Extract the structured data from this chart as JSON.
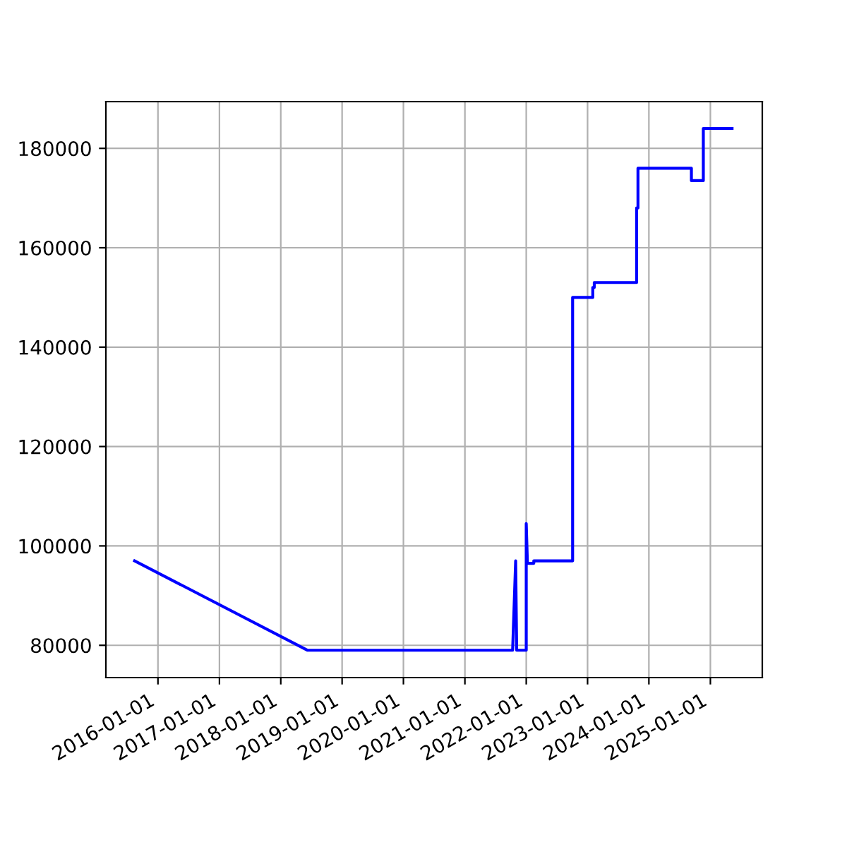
{
  "chart_data": {
    "type": "line",
    "x": [
      "2015-08-15",
      "2018-06-10",
      "2021-10-12",
      "2021-10-30",
      "2021-11-05",
      "2022-01-01",
      "2022-01-01",
      "2022-01-08",
      "2022-02-15",
      "2022-02-15",
      "2022-10-04",
      "2022-10-04",
      "2023-02-01",
      "2023-02-01",
      "2023-02-10",
      "2023-02-10",
      "2023-10-20",
      "2023-10-20",
      "2023-10-28",
      "2023-10-28",
      "2024-09-10",
      "2024-09-10",
      "2024-11-20",
      "2024-11-20",
      "2025-05-10"
    ],
    "series": [
      {
        "color": "#0000ff",
        "values": [
          97000,
          79000,
          79000,
          97000,
          79000,
          79000,
          104500,
          96500,
          96500,
          97000,
          97000,
          150000,
          150000,
          152000,
          152000,
          153000,
          153000,
          168000,
          168000,
          176000,
          176000,
          173500,
          173500,
          184000,
          184000
        ]
      }
    ],
    "xlim": [
      "2015-02-25",
      "2025-11-06"
    ],
    "xticks": [
      "2016-01-01",
      "2017-01-01",
      "2018-01-01",
      "2019-01-01",
      "2020-01-01",
      "2021-01-01",
      "2022-01-01",
      "2023-01-01",
      "2024-01-01",
      "2025-01-01"
    ],
    "ylim": [
      73500,
      189400
    ],
    "yticks": [
      80000,
      100000,
      120000,
      140000,
      160000,
      180000
    ],
    "grid": true,
    "line_style": "solid",
    "marker": "none"
  }
}
